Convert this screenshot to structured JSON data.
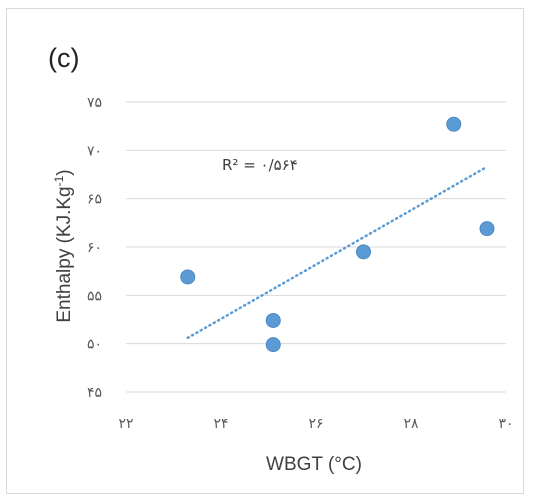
{
  "chart_data": {
    "type": "scatter",
    "panel_label": "(c)",
    "xlabel": "WBGT (°C)",
    "ylabel_main": "Enthalpy (KJ.Kg",
    "ylabel_sup": "-1",
    "ylabel_close": ")",
    "xlim": [
      22,
      30
    ],
    "ylim": [
      45,
      75
    ],
    "xticks": [
      22,
      24,
      26,
      28,
      30
    ],
    "yticks": [
      45,
      50,
      55,
      60,
      65,
      70,
      75
    ],
    "xtick_labels": [
      "۲۲",
      "۲۴",
      "۲۶",
      "۲۸",
      "۳۰"
    ],
    "ytick_labels": [
      "۴۵",
      "۵۰",
      "۵۵",
      "۶۰",
      "۶۵",
      "۷۰",
      "۷۵"
    ],
    "grid": "horizontal",
    "points": [
      {
        "x": 23.3,
        "y": 56.9
      },
      {
        "x": 25.1,
        "y": 52.4
      },
      {
        "x": 25.1,
        "y": 49.9
      },
      {
        "x": 27.0,
        "y": 59.5
      },
      {
        "x": 28.9,
        "y": 72.7
      },
      {
        "x": 29.6,
        "y": 61.9
      }
    ],
    "trendline": {
      "x_start": 23.3,
      "y_start": 50.6,
      "x_end": 29.6,
      "y_end": 68.3
    },
    "r2_label": "R² = ۰/۵۶۴",
    "colors": {
      "marker": "#5b9bd5",
      "marker_edge": "#4a8ac4",
      "trendline": "#5b9bd5",
      "grid": "#d9d9d9"
    }
  }
}
